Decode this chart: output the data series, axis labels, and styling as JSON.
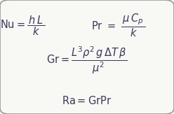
{
  "background_color": "#f8f8f5",
  "border_color": "#999999",
  "text_color": "#3a3a5a",
  "figsize": [
    2.48,
    1.63
  ],
  "dpi": 100,
  "fontsize": 10.5
}
